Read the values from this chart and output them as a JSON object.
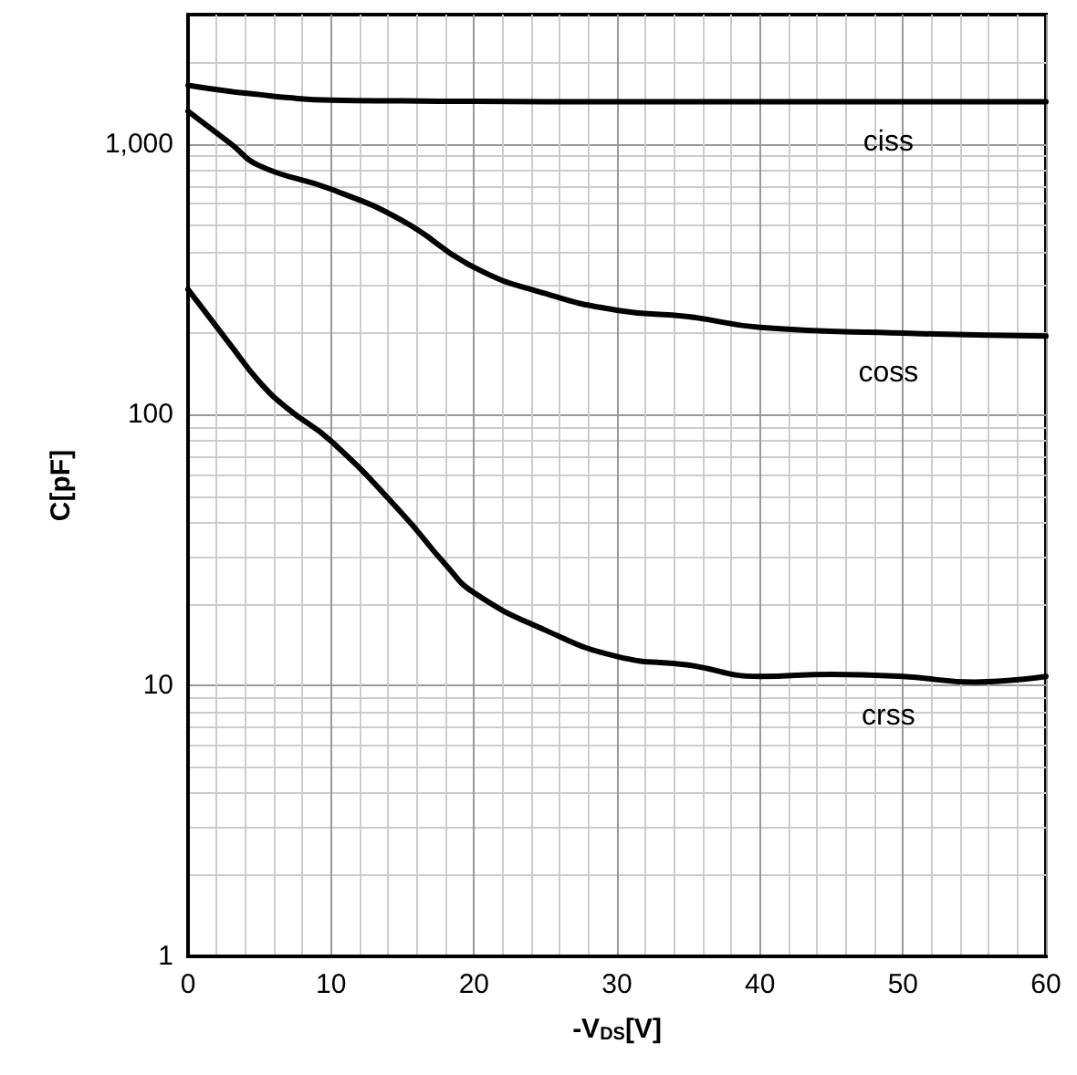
{
  "chart_data": {
    "type": "line",
    "xlabel": "-V$_{DS}$[V]",
    "ylabel": "C[pF]",
    "log": "y",
    "grid": true,
    "marker": "none",
    "line_style": "solid",
    "xlim": [
      0,
      60
    ],
    "xticks": [
      0,
      10,
      20,
      30,
      40,
      50,
      60
    ],
    "ylim": [
      1,
      3000
    ],
    "yticks": [
      1,
      10,
      100,
      {
        "value": 1000,
        "label": "1,000"
      }
    ],
    "series": [
      {
        "name": "ciss",
        "color": "#000000",
        "x": [
          0,
          3,
          5,
          7,
          10,
          15,
          20,
          30,
          40,
          50,
          60
        ],
        "values": [
          1645,
          1560,
          1520,
          1480,
          1450,
          1440,
          1435,
          1430,
          1430,
          1430,
          1430
        ]
      },
      {
        "name": "coss",
        "color": "#000000",
        "x": [
          0,
          3,
          5,
          10,
          15,
          20,
          25,
          30,
          35,
          40,
          50,
          60
        ],
        "values": [
          1320,
          1000,
          830,
          680,
          520,
          350,
          280,
          243,
          230,
          210,
          200,
          195
        ]
      },
      {
        "name": "crss",
        "color": "#000000",
        "x": [
          0,
          3,
          5,
          7,
          10,
          15,
          18,
          20,
          25,
          30,
          35,
          40,
          45,
          50,
          55,
          60
        ],
        "values": [
          290,
          180,
          132,
          105,
          80,
          43,
          28,
          22,
          16,
          12.8,
          11.9,
          10.8,
          11,
          10.8,
          10.3,
          10.8
        ]
      }
    ]
  }
}
